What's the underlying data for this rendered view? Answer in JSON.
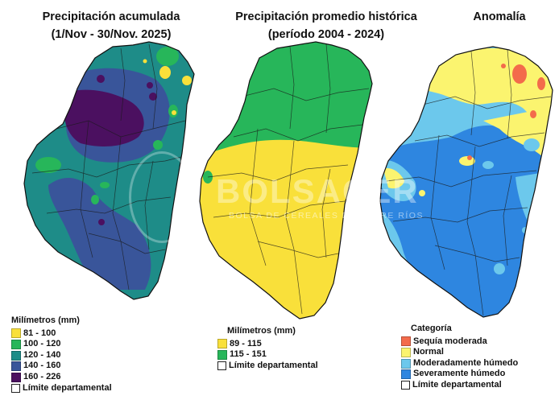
{
  "panels": [
    {
      "id": "acumulada",
      "title_line1": "Precipitación acumulada",
      "title_line2": "(1/Nov - 30/Nov. 2025)",
      "legend_title": "Milímetros (mm)",
      "legend": [
        {
          "label": "81 - 100",
          "color": "#f9e03a"
        },
        {
          "label": "100 - 120",
          "color": "#27b65a"
        },
        {
          "label": "120 - 140",
          "color": "#1e8c88"
        },
        {
          "label": "140 - 160",
          "color": "#39559a"
        },
        {
          "label": "160 - 226",
          "color": "#4b1060"
        }
      ],
      "boundary_label": "Límite departamental"
    },
    {
      "id": "historica",
      "title_line1": "Precipitación promedio histórica",
      "title_line2": "(período 2004 - 2024)",
      "legend_title": "Milímetros (mm)",
      "legend": [
        {
          "label": "89 - 115",
          "color": "#f9e03a"
        },
        {
          "label": "115 - 151",
          "color": "#27b65a"
        }
      ],
      "boundary_label": "Límite departamental"
    },
    {
      "id": "anomalia",
      "title_line1": "Anomalía",
      "legend_title": "Categoría",
      "legend": [
        {
          "label": "Sequía moderada",
          "color": "#f36b4b"
        },
        {
          "label": "Normal",
          "color": "#fbf46f"
        },
        {
          "label": "Moderadamente húmedo",
          "color": "#6cc8ec"
        },
        {
          "label": "Severamente húmedo",
          "color": "#2e86e0"
        }
      ],
      "boundary_label": "Límite departamental"
    }
  ],
  "watermark": {
    "text": "BOLSACER",
    "subtext": "BOLSA DE CEREALES DE ENTRE RÍOS"
  }
}
